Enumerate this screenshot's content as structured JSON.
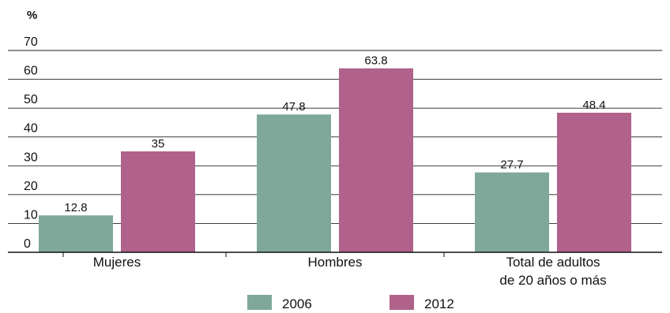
{
  "chart_data": {
    "type": "bar",
    "unit_label": "%",
    "categories": [
      [
        "Mujeres"
      ],
      [
        "Hombres"
      ],
      [
        "Total de adultos",
        "de 20 años o más"
      ]
    ],
    "series": [
      {
        "name": "2006",
        "values": [
          12.8,
          47.8,
          27.7
        ],
        "value_labels": [
          "12.8",
          "47.8",
          "27.7"
        ],
        "color": "#80a89a"
      },
      {
        "name": "2012",
        "values": [
          35,
          63.8,
          48.4
        ],
        "value_labels": [
          "35",
          "63.8",
          "48.4"
        ],
        "color": "#b0628a"
      }
    ],
    "ylim": [
      0,
      70
    ],
    "yticks": [
      "0",
      "10",
      "20",
      "30",
      "40",
      "50",
      "60",
      "70"
    ],
    "grid": true,
    "legend_position": "bottom"
  }
}
